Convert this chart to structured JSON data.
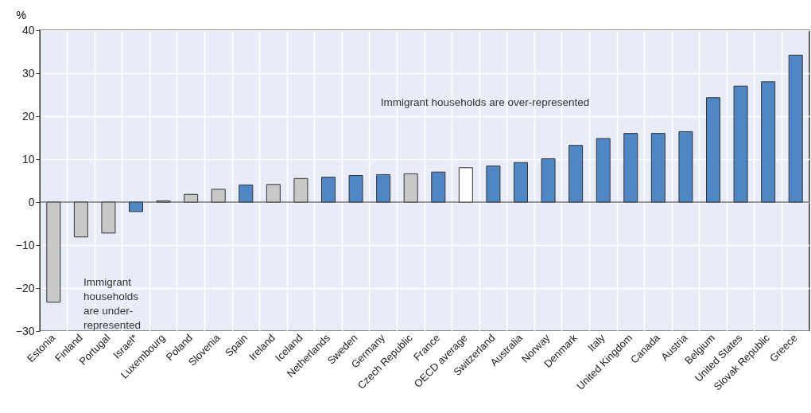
{
  "chart_data": {
    "type": "bar",
    "ylabel": "%",
    "categories": [
      "Estonia",
      "Finland",
      "Portugal",
      "Israel*",
      "Luxembourg",
      "Poland",
      "Slovenia",
      "Spain",
      "Ireland",
      "Iceland",
      "Netherlands",
      "Sweden",
      "Germany",
      "Czech Republic",
      "France",
      "OECD average",
      "Switzerland",
      "Australia",
      "Norway",
      "Denmark",
      "Italy",
      "United Kingdom",
      "Canada",
      "Austria",
      "Belgium",
      "United States",
      "Slovak Republic",
      "Greece"
    ],
    "values": [
      -23.3,
      -8.1,
      -7.2,
      -2.2,
      0.3,
      1.8,
      3.0,
      4.0,
      4.1,
      5.5,
      5.8,
      6.2,
      6.4,
      6.6,
      7.0,
      8.0,
      8.4,
      9.2,
      10.1,
      13.2,
      14.8,
      16.0,
      16.0,
      16.4,
      24.3,
      27.0,
      28.0,
      34.2
    ],
    "colors": [
      "#c8c8c8",
      "#c8c8c8",
      "#c8c8c8",
      "#4e86c6",
      "#c8c8c8",
      "#c8c8c8",
      "#c8c8c8",
      "#4e86c6",
      "#c8c8c8",
      "#c8c8c8",
      "#4e86c6",
      "#4e86c6",
      "#4e86c6",
      "#c8c8c8",
      "#4e86c6",
      "#ffffff",
      "#4e86c6",
      "#4e86c6",
      "#4e86c6",
      "#4e86c6",
      "#4e86c6",
      "#4e86c6",
      "#4e86c6",
      "#4e86c6",
      "#4e86c6",
      "#4e86c6",
      "#4e86c6",
      "#4e86c6"
    ],
    "ylim": [
      -30,
      40
    ],
    "yticks": [
      -30,
      -20,
      -10,
      0,
      10,
      20,
      30,
      40
    ],
    "grid": true,
    "annotations": [
      "Immigrant households are over-represented",
      "Immigrant households are under-represented"
    ]
  }
}
